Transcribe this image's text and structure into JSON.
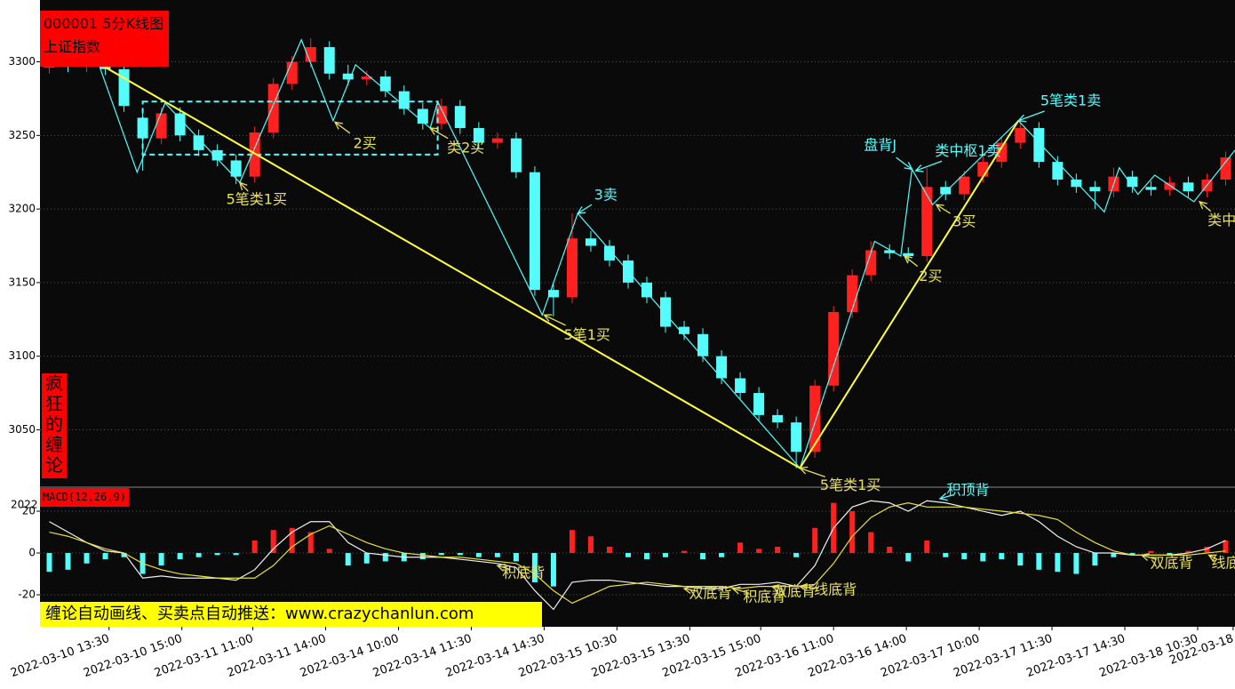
{
  "chart_data": [
    {
      "type": "candlestick",
      "title": "000001 5分K线图",
      "subtitle": "上证指数",
      "xlim": [
        -0.5,
        63.5
      ],
      "ylim": [
        3011,
        3342
      ],
      "yticks": [
        3050,
        3100,
        3150,
        3200,
        3250,
        3300
      ],
      "grid": true,
      "xticks": [
        {
          "value": 3.2,
          "label": "2022-03-10 13:30"
        },
        {
          "value": 7.1,
          "label": "2022-03-10 15:00"
        },
        {
          "value": 10.9,
          "label": "2022-03-11 11:00"
        },
        {
          "value": 14.8,
          "label": "2022-03-11 14:00"
        },
        {
          "value": 18.7,
          "label": "2022-03-14 10:00"
        },
        {
          "value": 22.6,
          "label": "2022-03-14 11:30"
        },
        {
          "value": 26.5,
          "label": "2022-03-14 14:30"
        },
        {
          "value": 30.4,
          "label": "2022-03-15 10:30"
        },
        {
          "value": 34.3,
          "label": "2022-03-15 13:30"
        },
        {
          "value": 38.1,
          "label": "2022-03-15 15:00"
        },
        {
          "value": 42.0,
          "label": "2022-03-16 11:00"
        },
        {
          "value": 45.9,
          "label": "2022-03-16 14:00"
        },
        {
          "value": 49.8,
          "label": "2022-03-17 10:00"
        },
        {
          "value": 53.7,
          "label": "2022-03-17 11:30"
        },
        {
          "value": 57.6,
          "label": "2022-03-17 14:30"
        },
        {
          "value": 61.5,
          "label": "2022-03-18 10:30"
        },
        {
          "value": 63.4,
          "label": "2022-03-18"
        }
      ],
      "up_color": "#ff2020",
      "down_color": "#54fcfc",
      "open": [
        3296,
        3300,
        3297,
        3300,
        3295,
        3262,
        3248,
        3265,
        3250,
        3240,
        3233,
        3222,
        3252,
        3285,
        3300,
        3310,
        3292,
        3288,
        3290,
        3280,
        3268,
        3258,
        3270,
        3255,
        3245,
        3248,
        3225,
        3145,
        3140,
        3180,
        3175,
        3165,
        3150,
        3140,
        3120,
        3115,
        3100,
        3085,
        3075,
        3060,
        3055,
        3035,
        3080,
        3130,
        3155,
        3172,
        3170,
        3168,
        3215,
        3210,
        3222,
        3232,
        3245,
        3255,
        3232,
        3220,
        3215,
        3212,
        3222,
        3215,
        3213,
        3218,
        3212,
        3220
      ],
      "high": [
        3304,
        3304,
        3304,
        3304,
        3299,
        3266,
        3269,
        3269,
        3254,
        3244,
        3237,
        3256,
        3289,
        3304,
        3316,
        3314,
        3298,
        3294,
        3294,
        3284,
        3272,
        3275,
        3274,
        3259,
        3252,
        3252,
        3229,
        3150,
        3197,
        3185,
        3179,
        3169,
        3154,
        3144,
        3124,
        3119,
        3104,
        3089,
        3079,
        3064,
        3059,
        3084,
        3134,
        3159,
        3178,
        3176,
        3174,
        3228,
        3219,
        3226,
        3236,
        3249,
        3262,
        3259,
        3236,
        3224,
        3219,
        3228,
        3226,
        3219,
        3222,
        3222,
        3224,
        3239
      ],
      "low": [
        3292,
        3293,
        3293,
        3291,
        3266,
        3226,
        3244,
        3246,
        3236,
        3229,
        3217,
        3218,
        3248,
        3281,
        3296,
        3288,
        3284,
        3284,
        3276,
        3264,
        3254,
        3254,
        3251,
        3241,
        3241,
        3221,
        3141,
        3127,
        3136,
        3171,
        3161,
        3146,
        3136,
        3116,
        3111,
        3096,
        3081,
        3071,
        3056,
        3051,
        3024,
        3031,
        3076,
        3126,
        3151,
        3166,
        3164,
        3164,
        3206,
        3206,
        3218,
        3228,
        3241,
        3228,
        3216,
        3211,
        3200,
        3208,
        3211,
        3209,
        3209,
        3208,
        3208,
        3216
      ],
      "close": [
        3300,
        3297,
        3300,
        3295,
        3270,
        3248,
        3265,
        3250,
        3240,
        3233,
        3222,
        3252,
        3285,
        3300,
        3310,
        3292,
        3288,
        3290,
        3280,
        3268,
        3258,
        3270,
        3255,
        3245,
        3248,
        3225,
        3145,
        3140,
        3180,
        3175,
        3165,
        3150,
        3140,
        3120,
        3115,
        3100,
        3085,
        3075,
        3060,
        3055,
        3035,
        3080,
        3130,
        3155,
        3172,
        3170,
        3168,
        3215,
        3210,
        3222,
        3232,
        3245,
        3255,
        3232,
        3220,
        3215,
        3212,
        3222,
        3215,
        3213,
        3218,
        3212,
        3220,
        3235
      ],
      "overlays": [
        {
          "color": "#54fcfc",
          "x": [
            2.6,
            4.7,
            6.2,
            10.2,
            13.5,
            15.2,
            16.4,
            20.4,
            20.8,
            26.4,
            28.3,
            40.2,
            44.2,
            45.6,
            46.2,
            47.3,
            51.9,
            56.5,
            57.3,
            58.3,
            59.2,
            61.3,
            63.5
          ],
          "y": [
            3300,
            3225,
            3272,
            3218,
            3315,
            3260,
            3298,
            3255,
            3273,
            3128,
            3197,
            3024,
            3178,
            3168,
            3227,
            3203,
            3260,
            3198,
            3228,
            3210,
            3223,
            3205,
            3240
          ]
        },
        {
          "color": "#ffff40",
          "x": [
            2.9,
            40.2,
            51.9
          ],
          "y": [
            3297,
            3024,
            3260
          ]
        }
      ],
      "boxes": [
        {
          "color": "#54fcfc",
          "x": [
            5.0,
            20.8
          ],
          "y": [
            3237,
            3273
          ]
        }
      ],
      "annotations": [
        {
          "text": "5笔类1买",
          "x": 11.1,
          "y": 3206,
          "color": "#e8e060",
          "target": [
            10.2,
            3218
          ]
        },
        {
          "text": "2买",
          "x": 16.9,
          "y": 3244,
          "color": "#e8e060",
          "target": [
            15.3,
            3259
          ]
        },
        {
          "text": "类2买",
          "x": 22.3,
          "y": 3241,
          "color": "#e8e060",
          "target": [
            20.4,
            3255
          ]
        },
        {
          "text": "3卖",
          "x": 29.8,
          "y": 3209,
          "color": "#54fcfc",
          "target": [
            28.3,
            3197
          ]
        },
        {
          "text": "5笔1买",
          "x": 28.8,
          "y": 3114,
          "color": "#e8e060",
          "target": [
            26.5,
            3128
          ]
        },
        {
          "text": "5笔类1买",
          "x": 42.9,
          "y": 3012,
          "color": "#e8e060",
          "target": [
            40.2,
            3024
          ]
        },
        {
          "text": "盘背J",
          "x": 44.5,
          "y": 3243,
          "color": "#54fcfc",
          "target": [
            46.2,
            3227
          ]
        },
        {
          "text": "类中枢1卖",
          "x": 49.2,
          "y": 3239,
          "color": "#54fcfc",
          "target": [
            46.4,
            3226
          ]
        },
        {
          "text": "5笔类1卖",
          "x": 54.7,
          "y": 3273,
          "color": "#54fcfc",
          "target": [
            51.9,
            3260
          ]
        },
        {
          "text": "3买",
          "x": 49.0,
          "y": 3191,
          "color": "#e8e060",
          "target": [
            47.5,
            3203
          ]
        },
        {
          "text": "2买",
          "x": 47.2,
          "y": 3154,
          "color": "#e8e060",
          "target": [
            45.8,
            3168
          ]
        },
        {
          "text": "类中",
          "x": 62.8,
          "y": 3192,
          "color": "#e8e060",
          "target": [
            61.6,
            3205
          ]
        }
      ]
    },
    {
      "type": "macd",
      "title": "MACD(12,26,9)",
      "corner_label": "2022",
      "xlim": [
        -0.5,
        63.5
      ],
      "ylim": [
        -35.3,
        31.5
      ],
      "yticks": [
        -20,
        0,
        20
      ],
      "grid": true,
      "up_color": "#ff2020",
      "down_color": "#54fcfc",
      "values": [
        -9,
        -8,
        -5,
        -3,
        -2,
        -10,
        -6,
        -3,
        -2,
        -1,
        -1,
        6,
        11,
        12,
        10,
        2,
        -6,
        -5,
        -4,
        -4,
        -3,
        -1,
        -1,
        -2,
        -2,
        -4,
        -14,
        -16,
        11,
        8,
        3,
        -2,
        -3,
        -2,
        1,
        -3,
        -2,
        5,
        2,
        3,
        -2,
        12,
        24,
        20,
        10,
        3,
        -4,
        6,
        -2,
        -3,
        -4,
        -3,
        -6,
        -8,
        -9,
        -10,
        -6,
        -2,
        -1,
        1,
        -1,
        1,
        3,
        6
      ],
      "series": [
        {
          "color": "#f0f0f0",
          "values": [
            15,
            10,
            5,
            1,
            0,
            -12,
            -11,
            -12,
            -12,
            -12,
            -13,
            -8,
            2,
            10,
            15,
            15,
            5,
            0,
            -1,
            -2,
            -2,
            -2,
            -3,
            -4,
            -5,
            -7,
            -18,
            -27,
            -14,
            -13,
            -13,
            -14,
            -15,
            -16,
            -16,
            -17,
            -17,
            -15,
            -15,
            -14,
            -16,
            -6,
            12,
            22,
            25,
            24,
            20,
            25,
            24,
            22,
            20,
            18,
            20,
            15,
            8,
            3,
            0,
            0,
            -1,
            -1,
            -1,
            0,
            2,
            6
          ]
        },
        {
          "color": "#e8e040",
          "values": [
            10,
            8,
            5,
            2,
            0,
            -5,
            -8,
            -10,
            -11,
            -12,
            -12,
            -12,
            -6,
            3,
            9,
            13,
            9,
            5,
            2,
            0,
            -1,
            -2,
            -2,
            -3,
            -4,
            -5,
            -10,
            -18,
            -24,
            -20,
            -16,
            -15,
            -14,
            -15,
            -16,
            -16,
            -16,
            -17,
            -16,
            -16,
            -16,
            -15,
            -5,
            8,
            17,
            22,
            24,
            22,
            22,
            22,
            21,
            20,
            19,
            18,
            16,
            10,
            5,
            1,
            -1,
            -1,
            -1,
            -1,
            0,
            1
          ]
        }
      ],
      "annotations": [
        {
          "text": "积底背",
          "x": 25.4,
          "y": -9.8,
          "color": "#e8e060",
          "target": [
            24.0,
            -6
          ]
        },
        {
          "text": "积顶背",
          "x": 49.2,
          "y": 29.8,
          "color": "#54fcfc",
          "target": [
            47.7,
            26
          ]
        },
        {
          "text": "双底背",
          "x": 35.4,
          "y": -19.6,
          "color": "#e8e060",
          "target": [
            34.0,
            -17
          ]
        },
        {
          "text": "积底背",
          "x": 38.3,
          "y": -21.3,
          "color": "#e8e060",
          "target": [
            36.6,
            -17
          ]
        },
        {
          "text": "双底背",
          "x": 39.9,
          "y": -18.7,
          "color": "#e8e060",
          "target": [
            38.7,
            -16
          ]
        },
        {
          "text": "线底背",
          "x": 42.1,
          "y": -17.9,
          "color": "#e8e060",
          "target": [
            40.2,
            -16
          ]
        },
        {
          "text": "双底背",
          "x": 60.1,
          "y": -5.1,
          "color": "#e8e060",
          "target": [
            58.5,
            -1
          ]
        },
        {
          "text": "线底",
          "x": 63.0,
          "y": -5.1,
          "color": "#e8e060",
          "target": [
            62.1,
            -1
          ]
        }
      ]
    }
  ],
  "branding": {
    "side": "疯狂的缠论",
    "banner": "缠论自动画线、买卖点自动推送：www.crazychanlun.com"
  }
}
